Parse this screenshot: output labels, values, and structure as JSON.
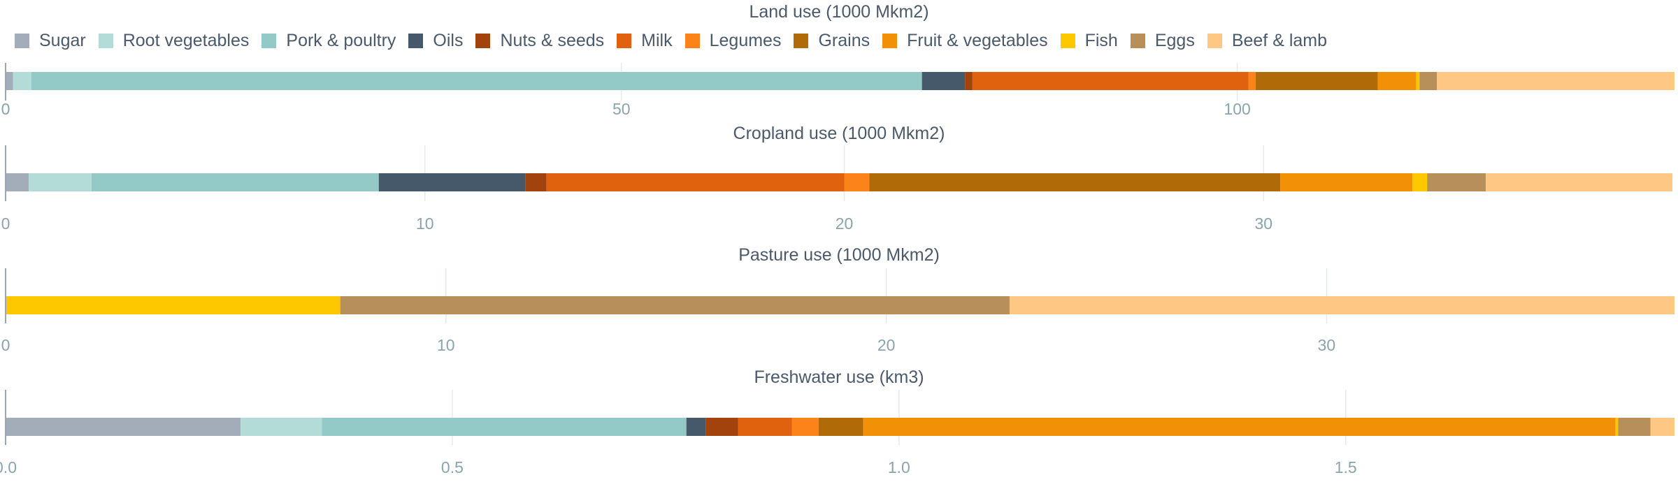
{
  "legend": [
    {
      "name": "Sugar",
      "color": "#a2adb9"
    },
    {
      "name": "Root vegetables",
      "color": "#b3dbd8"
    },
    {
      "name": "Pork & poultry",
      "color": "#93c9c6"
    },
    {
      "name": "Oils",
      "color": "#46596b"
    },
    {
      "name": "Nuts & seeds",
      "color": "#a2420c"
    },
    {
      "name": "Milk",
      "color": "#e0610e"
    },
    {
      "name": "Legumes",
      "color": "#fc8319"
    },
    {
      "name": "Grains",
      "color": "#b16a08"
    },
    {
      "name": "Fruit & vegetables",
      "color": "#f29105"
    },
    {
      "name": "Fish",
      "color": "#fec800"
    },
    {
      "name": "Eggs",
      "color": "#b78f5a"
    },
    {
      "name": "Beef & lamb",
      "color": "#fec884"
    }
  ],
  "chart_data": [
    {
      "type": "bar",
      "orientation": "horizontal-stacked",
      "title": "Land use (1000 Mkm2)",
      "xlim": [
        0,
        135.5
      ],
      "ticks": [
        0,
        50,
        100
      ],
      "tick_labels": [
        "0",
        "50",
        "100"
      ],
      "grid": true,
      "series": [
        {
          "name": "Sugar",
          "value": 0.6
        },
        {
          "name": "Root vegetables",
          "value": 1.5
        },
        {
          "name": "Pork & poultry",
          "value": 72.3
        },
        {
          "name": "Oils",
          "value": 3.5
        },
        {
          "name": "Nuts & seeds",
          "value": 0.6
        },
        {
          "name": "Milk",
          "value": 22.4
        },
        {
          "name": "Legumes",
          "value": 0.6
        },
        {
          "name": "Grains",
          "value": 9.9
        },
        {
          "name": "Fruit & vegetables",
          "value": 3.1
        },
        {
          "name": "Fish",
          "value": 0.3
        },
        {
          "name": "Eggs",
          "value": 1.4
        },
        {
          "name": "Beef & lamb",
          "value": 19.3
        }
      ]
    },
    {
      "type": "bar",
      "orientation": "horizontal-stacked",
      "title": "Cropland use (1000 Mkm2)",
      "xlim": [
        0,
        39.8
      ],
      "ticks": [
        0,
        10,
        20,
        30
      ],
      "tick_labels": [
        "0",
        "10",
        "20",
        "30"
      ],
      "grid": true,
      "series": [
        {
          "name": "Sugar",
          "value": 0.55
        },
        {
          "name": "Root vegetables",
          "value": 1.5
        },
        {
          "name": "Pork & poultry",
          "value": 6.85
        },
        {
          "name": "Oils",
          "value": 3.5
        },
        {
          "name": "Nuts & seeds",
          "value": 0.5
        },
        {
          "name": "Milk",
          "value": 7.1
        },
        {
          "name": "Legumes",
          "value": 0.6
        },
        {
          "name": "Grains",
          "value": 9.8
        },
        {
          "name": "Fruit & vegetables",
          "value": 3.15
        },
        {
          "name": "Fish",
          "value": 0.35
        },
        {
          "name": "Eggs",
          "value": 1.4
        },
        {
          "name": "Beef & lamb",
          "value": 4.45
        }
      ]
    },
    {
      "type": "bar",
      "orientation": "horizontal-stacked",
      "title": "Pasture use (1000 Mkm2)",
      "xlim": [
        0,
        37.9
      ],
      "ticks": [
        0,
        10,
        20,
        30
      ],
      "tick_labels": [
        "0",
        "10",
        "20",
        "30"
      ],
      "grid": true,
      "series": [
        {
          "name": "Fish",
          "value": 7.6
        },
        {
          "name": "Eggs",
          "value": 15.2
        },
        {
          "name": "Beef & lamb",
          "value": 15.1
        }
      ]
    },
    {
      "type": "bar",
      "orientation": "horizontal-stacked",
      "title": "Freshwater use (km3)",
      "xlim": [
        0,
        1.868
      ],
      "ticks": [
        0,
        0.5,
        1.0,
        1.5
      ],
      "tick_labels": [
        "0.0",
        "0.5",
        "1.0",
        "1.5"
      ],
      "grid": true,
      "series": [
        {
          "name": "Sugar",
          "value": 0.263
        },
        {
          "name": "Root vegetables",
          "value": 0.091
        },
        {
          "name": "Pork & poultry",
          "value": 0.408
        },
        {
          "name": "Oils",
          "value": 0.022
        },
        {
          "name": "Nuts & seeds",
          "value": 0.036
        },
        {
          "name": "Milk",
          "value": 0.06
        },
        {
          "name": "Legumes",
          "value": 0.03
        },
        {
          "name": "Grains",
          "value": 0.05
        },
        {
          "name": "Fruit & vegetables",
          "value": 0.842
        },
        {
          "name": "Fish",
          "value": 0.003
        },
        {
          "name": "Eggs",
          "value": 0.036
        },
        {
          "name": "Beef & lamb",
          "value": 0.027
        }
      ]
    }
  ]
}
